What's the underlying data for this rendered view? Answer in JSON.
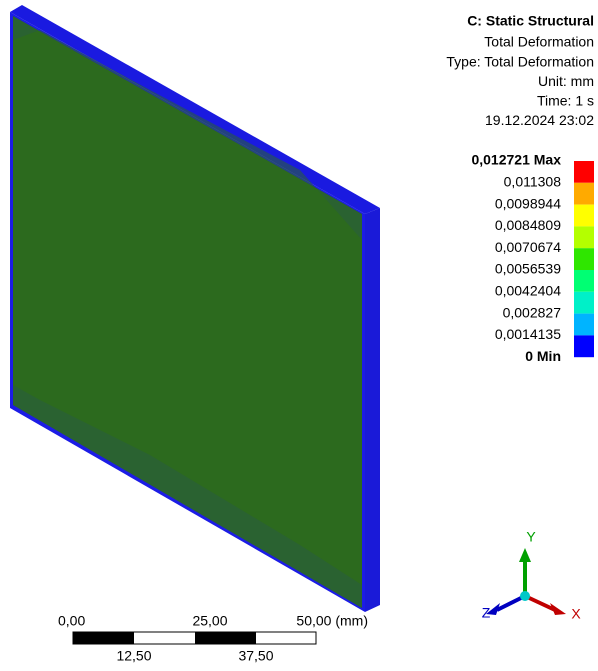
{
  "header": {
    "title": "C: Static Structural",
    "lines": [
      "Total Deformation",
      "Type: Total Deformation",
      "Unit: mm",
      "Time: 1 s",
      "19.12.2024 23:02"
    ]
  },
  "legend": {
    "labels": [
      "0,012721 Max",
      "0,011308",
      "0,0098944",
      "0,0084809",
      "0,0070674",
      "0,0056539",
      "0,0042404",
      "0,002827",
      "0,0014135",
      "0 Min"
    ],
    "colors": [
      "#ff0000",
      "#ffaa00",
      "#ffff00",
      "#b4ff00",
      "#2fe600",
      "#00ff73",
      "#00f0c8",
      "#00b4ff",
      "#0000ff"
    ]
  },
  "scale_bar": {
    "top_labels": [
      "0,00",
      "25,00",
      "50,00 (mm)"
    ],
    "bottom_labels": [
      "12,50",
      "37,50"
    ]
  },
  "triad": {
    "x": "X",
    "y": "Y",
    "z": "Z"
  }
}
